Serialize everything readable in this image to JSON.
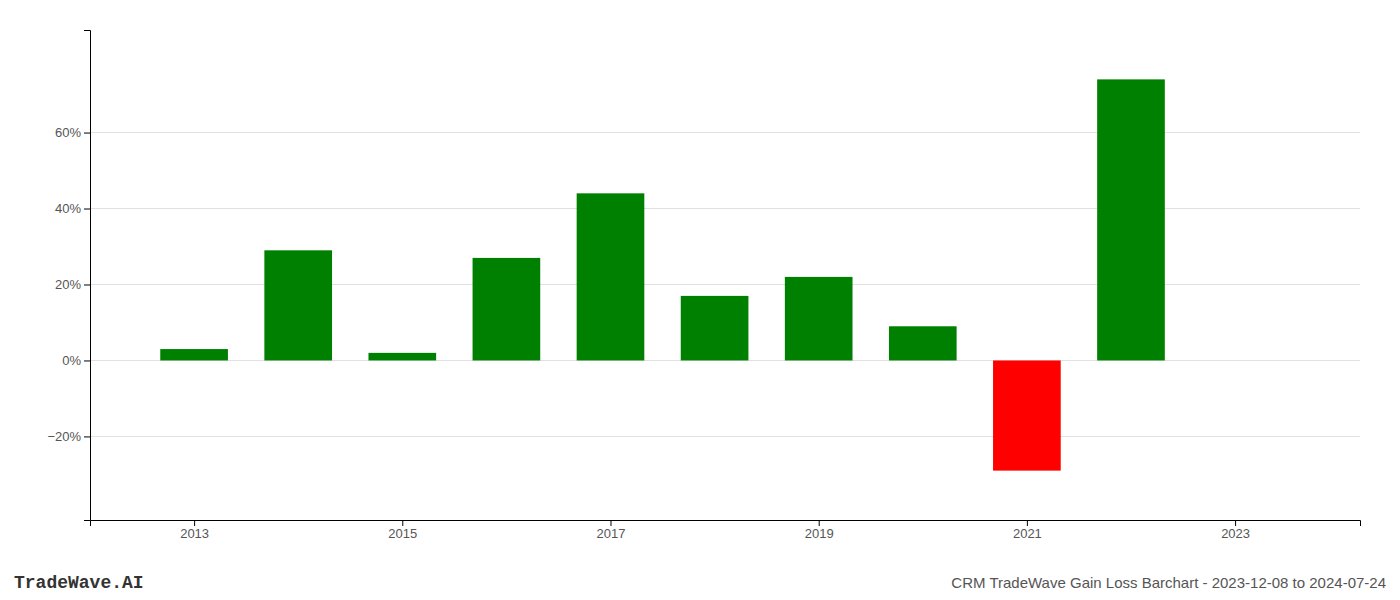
{
  "chart_data": {
    "type": "bar",
    "title": "CRM TradeWave Gain Loss Barchart - 2023-12-08 to 2024-07-24",
    "annotations": [
      "TradeWave.AI"
    ],
    "x": [
      2013,
      2014,
      2015,
      2016,
      2017,
      2018,
      2019,
      2020,
      2021,
      2022
    ],
    "values": [
      0.03,
      0.29,
      0.02,
      0.27,
      0.44,
      0.17,
      0.22,
      0.09,
      -0.29,
      0.74
    ],
    "colors": [
      "#008000",
      "#008000",
      "#008000",
      "#008000",
      "#008000",
      "#008000",
      "#008000",
      "#008000",
      "#ff0000",
      "#008000"
    ],
    "xlim": [
      2012.0,
      2024.2
    ],
    "xticks": [
      2013,
      2015,
      2017,
      2019,
      2021,
      2023
    ],
    "ylim": [
      -0.42,
      0.87
    ],
    "yticks": [
      {
        "value": -0.2,
        "label": "−20%"
      },
      {
        "value": 0.0,
        "label": "0%"
      },
      {
        "value": 0.2,
        "label": "20%"
      },
      {
        "value": 0.4,
        "label": "40%"
      },
      {
        "value": 0.6,
        "label": "60%"
      }
    ],
    "grid": true
  }
}
